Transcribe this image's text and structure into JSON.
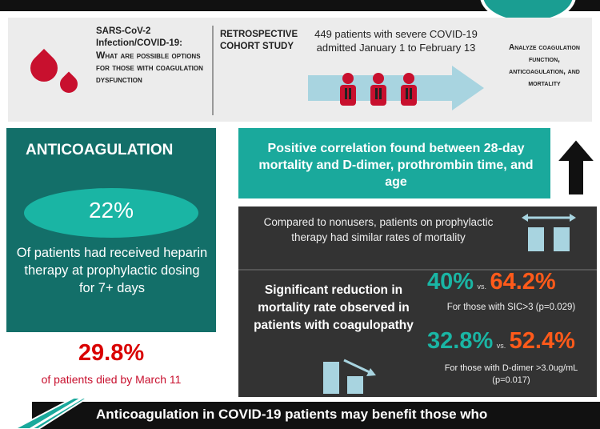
{
  "header": {
    "title_line1": "SARS-CoV-2",
    "title_line2": "Infection/COVID-19:",
    "title_sub": "What are possible options for those with coagulation dysfunction",
    "study_label": "RETROSPECTIVE COHORT STUDY",
    "patients_text": "449 patients with severe COVID-19 admitted January 1 to February 13",
    "analyze_text": "Analyze coagulation function, anticoagulation, and mortality"
  },
  "anticoagulation": {
    "title": "ANTICOAGULATION",
    "percent": "22%",
    "description": "Of patients had received heparin therapy at prophylactic dosing for 7+ days"
  },
  "mortality": {
    "percent": "29.8%",
    "description": "of patients died by March 11"
  },
  "correlation": {
    "text": "Positive correlation found between 28-day mortality and D-dimer, prothrombin time, and age"
  },
  "prophylactic": {
    "text": "Compared to nonusers, patients on prophylactic therapy had similar rates of mortality"
  },
  "reduction": {
    "text": "Significant reduction in mortality rate observed in patients with coagulopathy",
    "vs_label": "vs.",
    "row1": {
      "treated": "40%",
      "untreated": "64.2%",
      "note": "For those with SIC>3 (p=0.029)"
    },
    "row2": {
      "treated": "32.8%",
      "untreated": "52.4%",
      "note": "For those with D-dimer >3.0ug/mL (p=0.017)"
    }
  },
  "footer": {
    "text": "Anticoagulation in COVID-19 patients may benefit those who"
  },
  "colors": {
    "teal_dark": "#136f69",
    "teal": "#1aa99c",
    "red": "#c8102e",
    "orange": "#ff5a1a",
    "dark_panel": "#333333"
  }
}
